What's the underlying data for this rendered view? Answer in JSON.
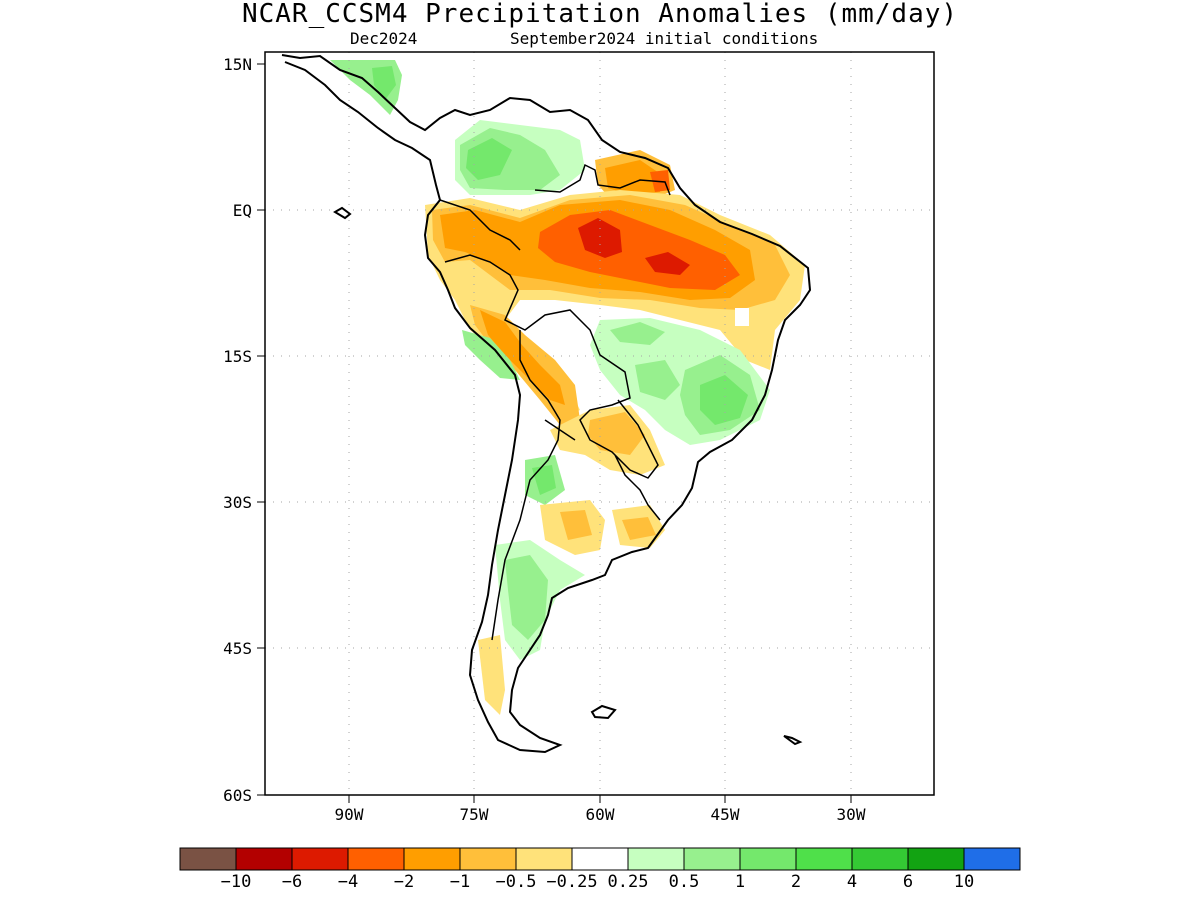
{
  "title": "NCAR_CCSM4 Precipitation Anomalies (mm/day)",
  "subtitle_left": "Dec2024",
  "subtitle_right": "September2024 initial conditions",
  "lat_labels": [
    "15N",
    "EQ",
    "15S",
    "30S",
    "45S",
    "60S"
  ],
  "lon_labels": [
    "90W",
    "75W",
    "60W",
    "45W",
    "30W"
  ],
  "colorbar": {
    "colors": [
      "#7a5244",
      "#b30000",
      "#dd1a00",
      "#ff6000",
      "#ff9e00",
      "#ffbf3a",
      "#ffe27a",
      "#ffffff",
      "#c6ffc0",
      "#97f08e",
      "#74e86c",
      "#4fe04a",
      "#34c934",
      "#12a312",
      "#1f6ee8"
    ],
    "labels": [
      "−10",
      "−6",
      "−4",
      "−2",
      "−1",
      "−0.5",
      "−0.25",
      "0.25",
      "0.5",
      "1",
      "2",
      "4",
      "6",
      "10"
    ]
  }
}
